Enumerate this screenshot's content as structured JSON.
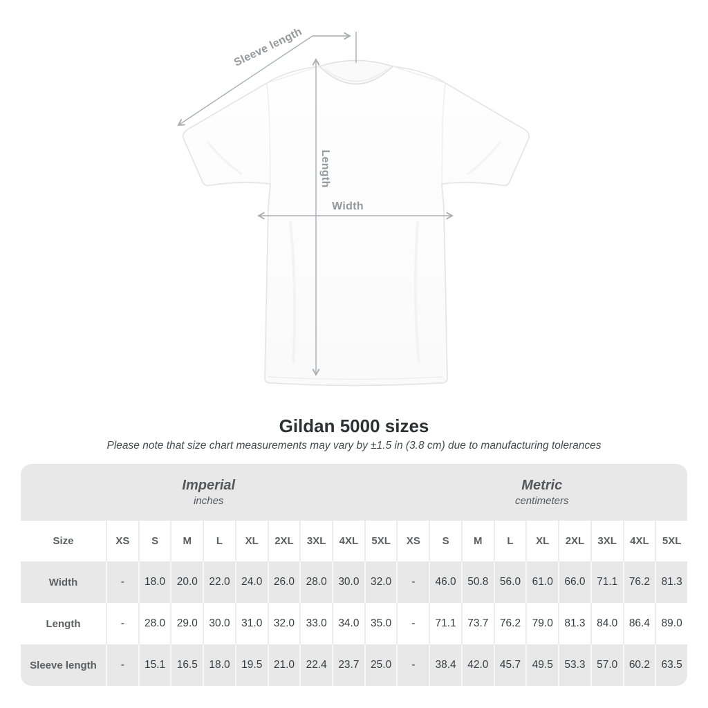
{
  "diagram": {
    "labels": {
      "sleeve_length": "Sleeve length",
      "length": "Length",
      "width": "Width"
    }
  },
  "title": "Gildan 5000 sizes",
  "subtitle": "Please note that size chart measurements may vary by ±1.5 in (3.8 cm) due to manufacturing tolerances",
  "table": {
    "groups": [
      {
        "label": "Imperial",
        "sublabel": "inches"
      },
      {
        "label": "Metric",
        "sublabel": "centimeters"
      }
    ],
    "size_header": "Size",
    "sizes": [
      "XS",
      "S",
      "M",
      "L",
      "XL",
      "2XL",
      "3XL",
      "4XL",
      "5XL"
    ],
    "rows": [
      {
        "label": "Width",
        "imperial": [
          "-",
          "18.0",
          "20.0",
          "22.0",
          "24.0",
          "26.0",
          "28.0",
          "30.0",
          "32.0"
        ],
        "metric": [
          "-",
          "46.0",
          "50.8",
          "56.0",
          "61.0",
          "66.0",
          "71.1",
          "76.2",
          "81.3"
        ]
      },
      {
        "label": "Length",
        "imperial": [
          "-",
          "28.0",
          "29.0",
          "30.0",
          "31.0",
          "32.0",
          "33.0",
          "34.0",
          "35.0"
        ],
        "metric": [
          "-",
          "71.1",
          "73.7",
          "76.2",
          "79.0",
          "81.3",
          "84.0",
          "86.4",
          "89.0"
        ]
      },
      {
        "label": "Sleeve length",
        "imperial": [
          "-",
          "15.1",
          "16.5",
          "18.0",
          "19.5",
          "21.0",
          "22.4",
          "23.7",
          "25.0"
        ],
        "metric": [
          "-",
          "38.4",
          "42.0",
          "45.7",
          "49.5",
          "53.3",
          "57.0",
          "60.2",
          "63.5"
        ]
      }
    ]
  },
  "colors": {
    "table_band": "#e8e8e8",
    "stripe_row": "#e8e8e8",
    "label_text": "#5c6063",
    "value_text": "#393c3e",
    "measure_line": "#a9aeb1"
  }
}
